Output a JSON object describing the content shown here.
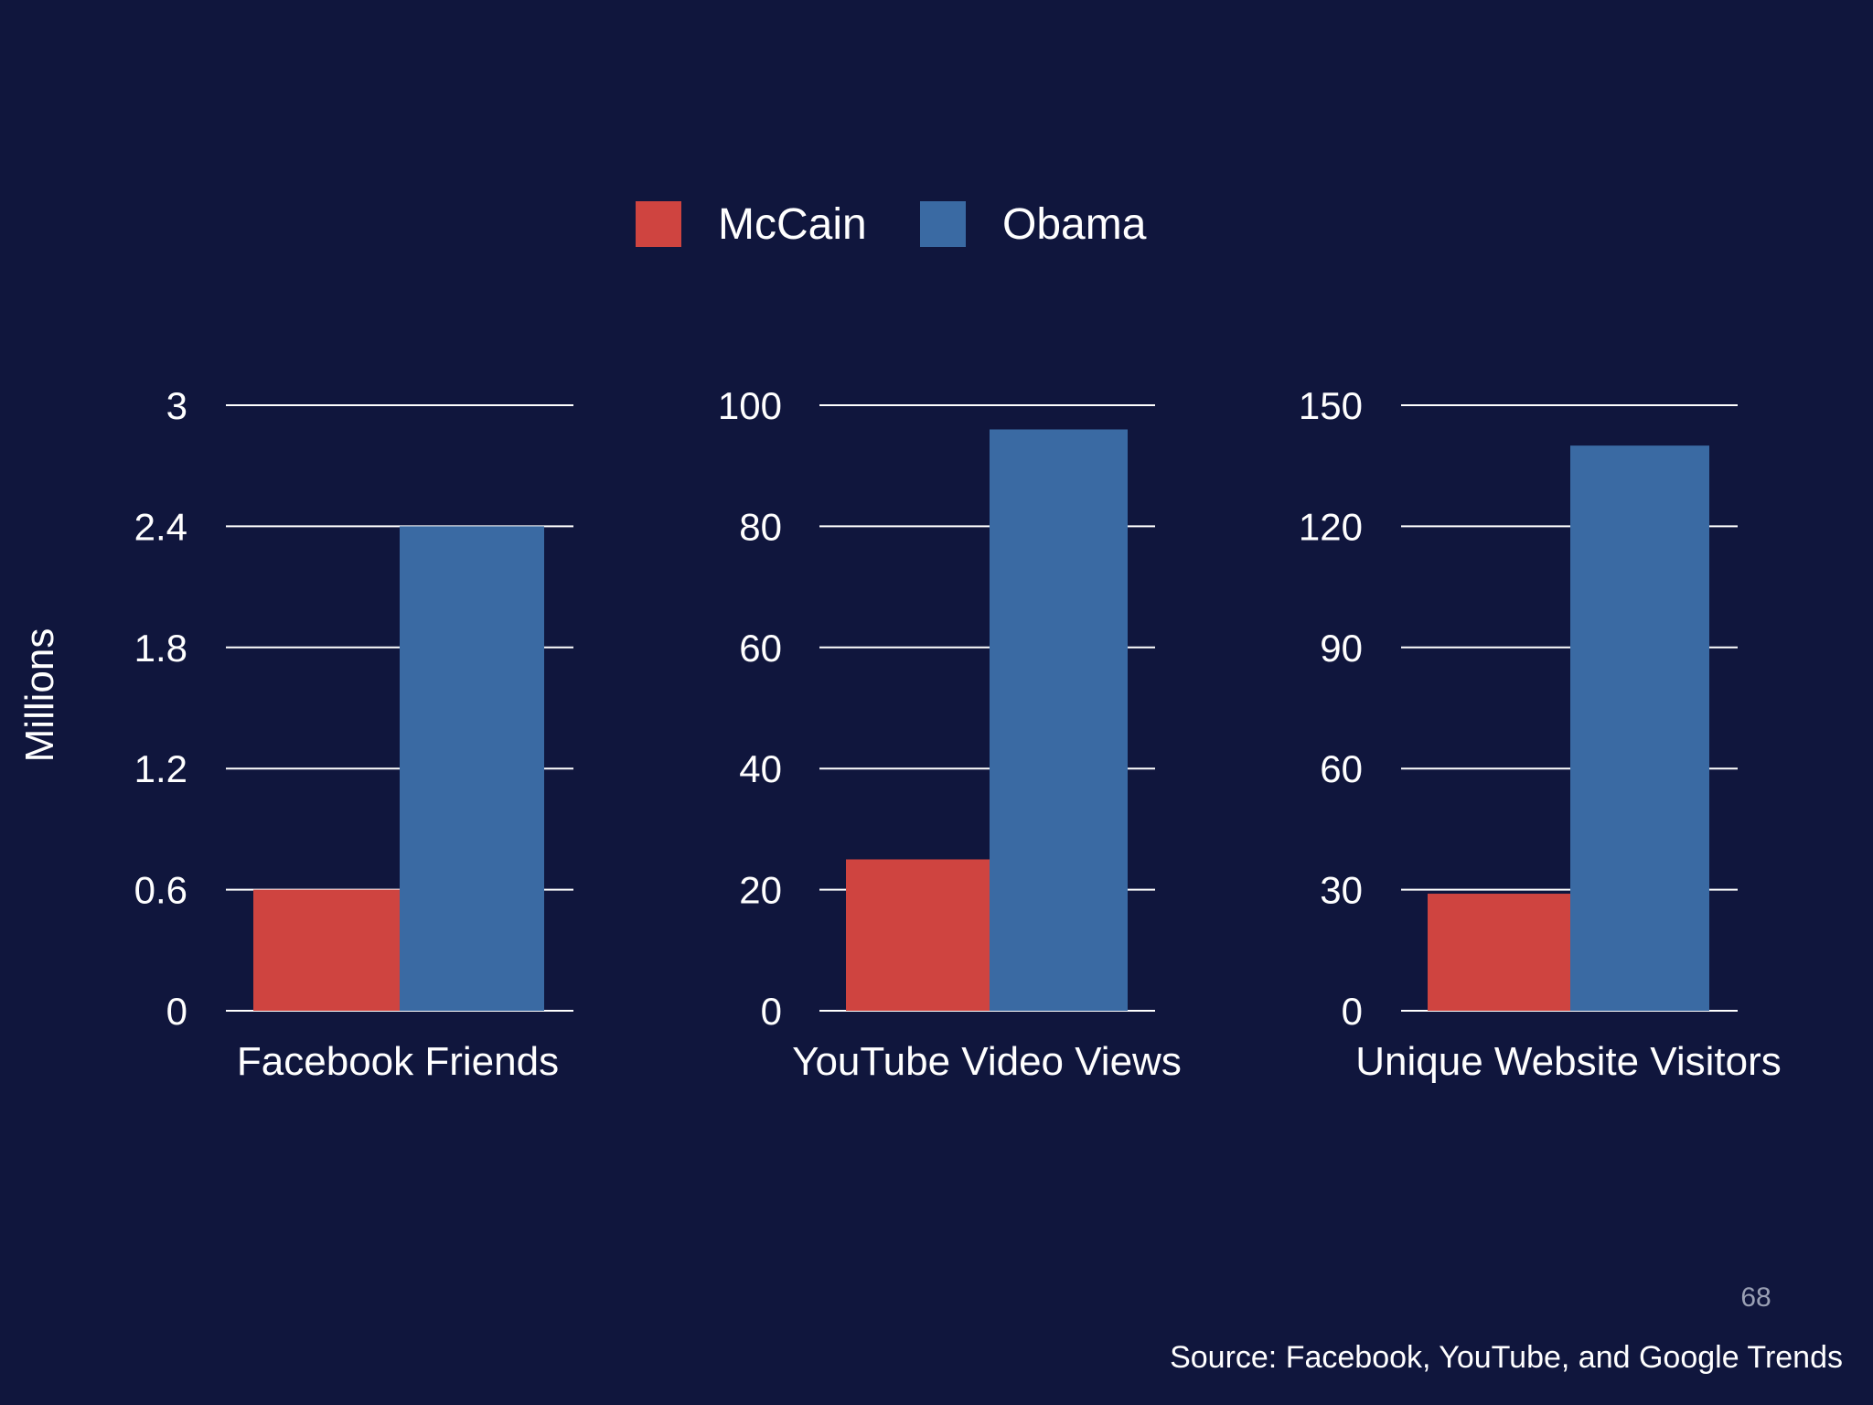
{
  "legend": {
    "items": [
      {
        "label": "McCain",
        "color": "#cf4440"
      },
      {
        "label": "Obama",
        "color": "#3a6aa3"
      }
    ]
  },
  "y_axis_label": "Millions",
  "page_number": "68",
  "source": "Source: Facebook, YouTube, and Google Trends",
  "colors": {
    "background": "#10163d",
    "grid": "#ffffff",
    "text": "#ffffff"
  },
  "chart_data": [
    {
      "type": "bar",
      "xlabel": "Facebook Friends",
      "ylabel": "Millions",
      "ylim": [
        0,
        3
      ],
      "yticks": [
        "0",
        "0.6",
        "1.2",
        "1.8",
        "2.4",
        "3"
      ],
      "series": [
        {
          "name": "McCain",
          "values": [
            0.6
          ]
        },
        {
          "name": "Obama",
          "values": [
            2.4
          ]
        }
      ]
    },
    {
      "type": "bar",
      "xlabel": "YouTube Video Views",
      "ylim": [
        0,
        100
      ],
      "yticks": [
        "0",
        "20",
        "40",
        "60",
        "80",
        "100"
      ],
      "series": [
        {
          "name": "McCain",
          "values": [
            25
          ]
        },
        {
          "name": "Obama",
          "values": [
            96
          ]
        }
      ]
    },
    {
      "type": "bar",
      "xlabel": "Unique Website Visitors",
      "ylim": [
        0,
        150
      ],
      "yticks": [
        "0",
        "30",
        "60",
        "90",
        "120",
        "150"
      ],
      "series": [
        {
          "name": "McCain",
          "values": [
            29
          ]
        },
        {
          "name": "Obama",
          "values": [
            140
          ]
        }
      ]
    }
  ]
}
